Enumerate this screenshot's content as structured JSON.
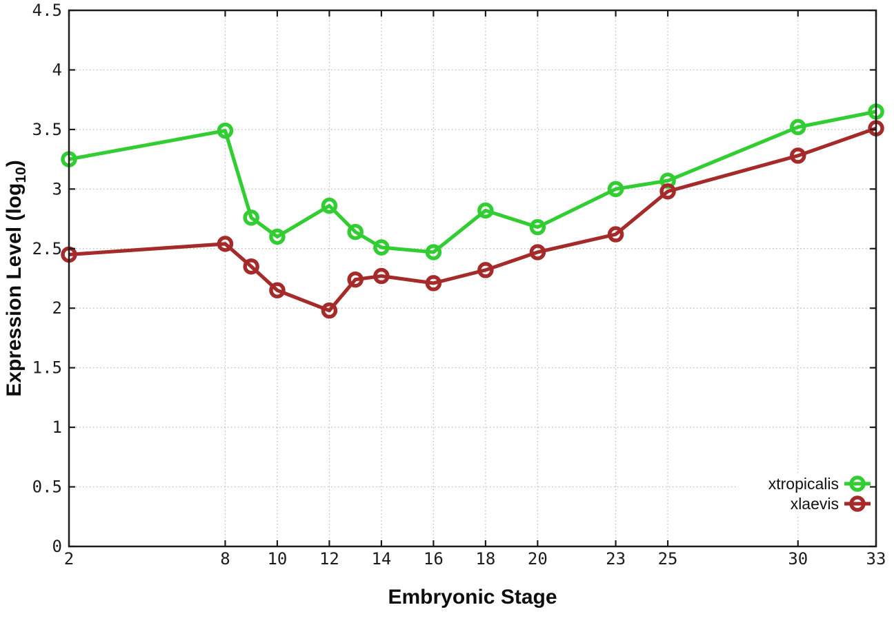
{
  "chart_data": {
    "type": "line",
    "x": [
      2,
      8,
      9,
      10,
      12,
      13,
      14,
      16,
      18,
      20,
      23,
      25,
      30,
      33
    ],
    "series": [
      {
        "name": "xtropicalis",
        "color": "#32CD32",
        "values": [
          3.25,
          3.49,
          2.76,
          2.6,
          2.86,
          2.64,
          2.51,
          2.47,
          2.82,
          2.68,
          3.0,
          3.07,
          3.52,
          3.65
        ]
      },
      {
        "name": "xlaevis",
        "color": "#A52A2A",
        "values": [
          2.45,
          2.54,
          2.35,
          2.15,
          1.98,
          2.24,
          2.27,
          2.21,
          2.32,
          2.47,
          2.62,
          2.98,
          3.28,
          3.51
        ]
      }
    ],
    "title": "",
    "xlabel": "Embryonic Stage",
    "ylabel": "Expression Level (log10)",
    "ylabel_parts": {
      "pre": "Expression Level (log",
      "sub": "10",
      "post": ")"
    },
    "xlim": [
      2,
      33
    ],
    "ylim": [
      0,
      4.5
    ],
    "xticks": [
      2,
      8,
      10,
      12,
      14,
      16,
      18,
      20,
      23,
      25,
      30,
      33
    ],
    "xtick_labels": [
      "2",
      "8",
      "10",
      "12",
      "14",
      "16",
      "18",
      "20",
      "23",
      "25",
      "30",
      "33"
    ],
    "yticks": [
      0,
      0.5,
      1,
      1.5,
      2,
      2.5,
      3,
      3.5,
      4,
      4.5
    ],
    "ytick_labels": [
      "0",
      "0.5",
      "1",
      "1.5",
      "2",
      "2.5",
      "3",
      "3.5",
      "4",
      "4.5"
    ],
    "grid": true,
    "grid_style": "dotted",
    "legend_position": "inside-bottom-right",
    "legend": [
      "xtropicalis",
      "xlaevis"
    ],
    "colors": {
      "background": "#ffffff",
      "axis": "#1c1c1c",
      "grid": "#b8b8b8",
      "text": "#1c1c1c"
    }
  }
}
